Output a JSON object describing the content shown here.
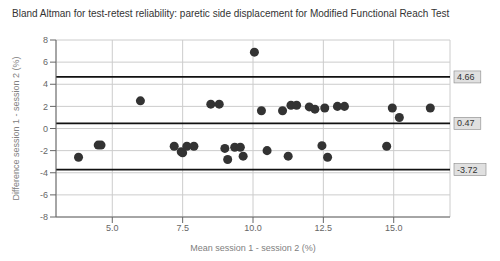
{
  "chart_data": {
    "type": "scatter",
    "title": "Bland Altman for test-retest reliability: paretic side displacement for Modified Functional Reach Test",
    "xlabel": "Mean session 1 - session 2 (%)",
    "ylabel": "Difference session 1 - session 2 (%)",
    "x": [
      3.8,
      4.5,
      4.6,
      6.0,
      7.2,
      7.45,
      7.5,
      7.65,
      7.9,
      8.5,
      8.8,
      9.0,
      9.1,
      9.35,
      9.55,
      9.65,
      10.05,
      10.3,
      10.5,
      11.05,
      11.25,
      11.35,
      11.55,
      12.0,
      12.2,
      12.45,
      12.55,
      12.65,
      13.0,
      13.25,
      14.75,
      14.95,
      15.2,
      16.3
    ],
    "values": [
      -2.6,
      -1.5,
      -1.5,
      2.5,
      -1.6,
      -2.1,
      -2.2,
      -1.6,
      -1.6,
      2.2,
      2.2,
      -1.8,
      -2.8,
      -1.7,
      -1.7,
      -2.5,
      6.9,
      1.6,
      -2.0,
      1.6,
      -2.5,
      2.1,
      2.1,
      1.95,
      1.75,
      -1.55,
      1.85,
      -2.6,
      2.0,
      2.0,
      -1.6,
      1.85,
      1.0,
      1.85
    ],
    "color": "#333333",
    "reference_lines": [
      {
        "value": 4.66,
        "label": "4.66"
      },
      {
        "value": 0.47,
        "label": "0.47"
      },
      {
        "value": -3.72,
        "label": "-3.72"
      }
    ],
    "xlim": [
      3.0,
      17.0
    ],
    "ylim": [
      -8.0,
      8.0
    ],
    "xticks": [
      {
        "value": 5.0,
        "label": "5.0"
      },
      {
        "value": 7.5,
        "label": "7.5"
      },
      {
        "value": 10.0,
        "label": "10.0"
      },
      {
        "value": 12.5,
        "label": "12.5"
      },
      {
        "value": 15.0,
        "label": "15.0"
      }
    ],
    "yticks": [
      -8,
      -6,
      -4,
      -2,
      0,
      2,
      4,
      6,
      8
    ],
    "grid": true
  }
}
